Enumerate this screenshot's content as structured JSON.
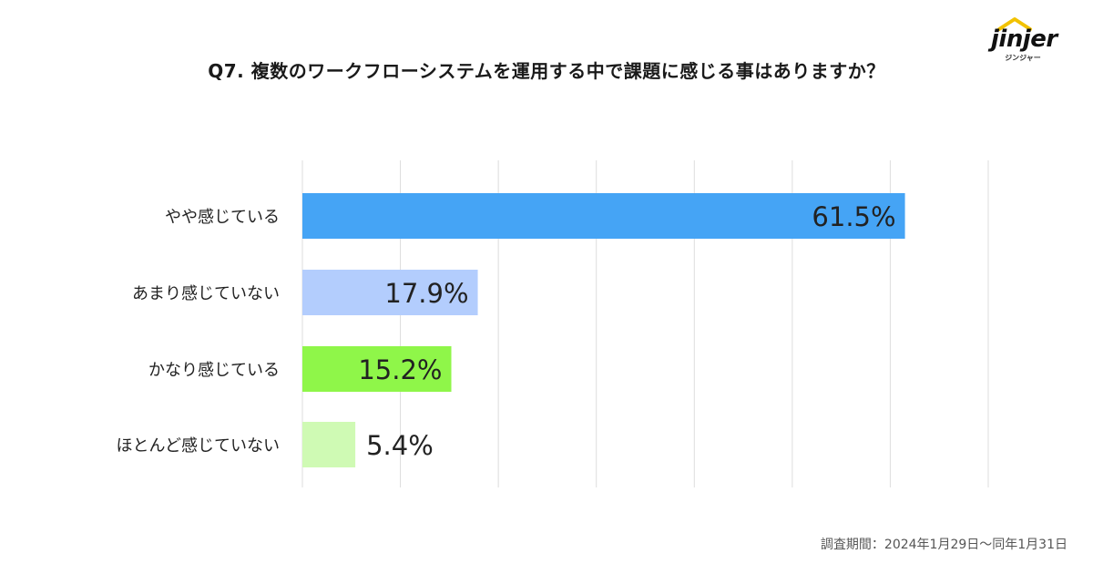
{
  "logo": {
    "wordmark": "jinjer",
    "subtitle": "ジンジャー",
    "roof_color": "#F2C200"
  },
  "chart_data": {
    "type": "bar",
    "orientation": "horizontal",
    "title": "Q7. 複数のワークフローシステムを運用する中で課題に感じる事はありますか？",
    "categories": [
      "やや感じている",
      "あまり感じていない",
      "かなり感じている",
      "ほとんど感じていない"
    ],
    "values": [
      61.5,
      17.9,
      15.2,
      5.4
    ],
    "value_labels": [
      "61.5%",
      "17.9%",
      "15.2%",
      "5.4%"
    ],
    "colors": [
      "#45A4F5",
      "#B3CDFD",
      "#8FF649",
      "#CFFAB4"
    ],
    "xlim": [
      0,
      70
    ],
    "grid": true,
    "legend": "none"
  },
  "footnote": "調査期間：2024年1月29日〜同年1月31日"
}
